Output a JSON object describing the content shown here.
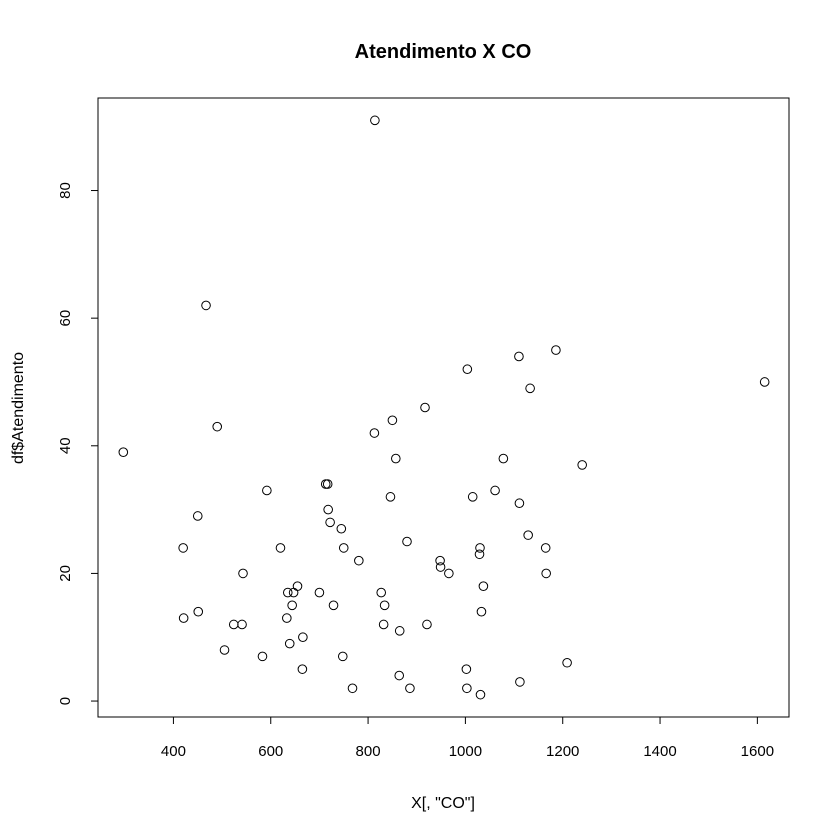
{
  "chart_data": {
    "type": "scatter",
    "title": "Atendimento X CO",
    "xlabel": "X[, \"CO\"]",
    "ylabel": "df$Atendimento",
    "xlim": [
      245,
      1665
    ],
    "ylim": [
      -2.5,
      94.5
    ],
    "xticks": [
      400,
      600,
      800,
      1000,
      1200,
      1400,
      1600
    ],
    "yticks": [
      0,
      20,
      40,
      60,
      80
    ],
    "xtick_labels": [
      "400",
      "600",
      "800",
      "1000",
      "1200",
      "1400",
      "1600"
    ],
    "ytick_labels": [
      "0",
      "20",
      "40",
      "60",
      "80"
    ],
    "grid": false,
    "marker": "open-circle",
    "points": [
      {
        "x": 297,
        "y": 39
      },
      {
        "x": 420,
        "y": 24
      },
      {
        "x": 421,
        "y": 13
      },
      {
        "x": 450,
        "y": 29
      },
      {
        "x": 451,
        "y": 14
      },
      {
        "x": 467,
        "y": 62
      },
      {
        "x": 490,
        "y": 43
      },
      {
        "x": 505,
        "y": 8
      },
      {
        "x": 524,
        "y": 12
      },
      {
        "x": 541,
        "y": 12
      },
      {
        "x": 543,
        "y": 20
      },
      {
        "x": 583,
        "y": 7
      },
      {
        "x": 592,
        "y": 33
      },
      {
        "x": 620,
        "y": 24
      },
      {
        "x": 633,
        "y": 13
      },
      {
        "x": 635,
        "y": 17
      },
      {
        "x": 639,
        "y": 9
      },
      {
        "x": 644,
        "y": 15
      },
      {
        "x": 647,
        "y": 17
      },
      {
        "x": 655,
        "y": 18
      },
      {
        "x": 665,
        "y": 5
      },
      {
        "x": 666,
        "y": 10
      },
      {
        "x": 700,
        "y": 17
      },
      {
        "x": 713,
        "y": 34
      },
      {
        "x": 717,
        "y": 34
      },
      {
        "x": 718,
        "y": 30
      },
      {
        "x": 722,
        "y": 28
      },
      {
        "x": 729,
        "y": 15
      },
      {
        "x": 745,
        "y": 27
      },
      {
        "x": 748,
        "y": 7
      },
      {
        "x": 750,
        "y": 24
      },
      {
        "x": 768,
        "y": 2
      },
      {
        "x": 781,
        "y": 22
      },
      {
        "x": 813,
        "y": 42
      },
      {
        "x": 814,
        "y": 91
      },
      {
        "x": 827,
        "y": 17
      },
      {
        "x": 832,
        "y": 12
      },
      {
        "x": 834,
        "y": 15
      },
      {
        "x": 846,
        "y": 32
      },
      {
        "x": 850,
        "y": 44
      },
      {
        "x": 857,
        "y": 38
      },
      {
        "x": 864,
        "y": 4
      },
      {
        "x": 865,
        "y": 11
      },
      {
        "x": 880,
        "y": 25
      },
      {
        "x": 886,
        "y": 2
      },
      {
        "x": 917,
        "y": 46
      },
      {
        "x": 921,
        "y": 12
      },
      {
        "x": 948,
        "y": 22
      },
      {
        "x": 949,
        "y": 21
      },
      {
        "x": 966,
        "y": 20
      },
      {
        "x": 1002,
        "y": 5
      },
      {
        "x": 1003,
        "y": 2
      },
      {
        "x": 1004,
        "y": 52
      },
      {
        "x": 1015,
        "y": 32
      },
      {
        "x": 1029,
        "y": 23
      },
      {
        "x": 1030,
        "y": 24
      },
      {
        "x": 1031,
        "y": 1
      },
      {
        "x": 1033,
        "y": 14
      },
      {
        "x": 1037,
        "y": 18
      },
      {
        "x": 1061,
        "y": 33
      },
      {
        "x": 1078,
        "y": 38
      },
      {
        "x": 1110,
        "y": 54
      },
      {
        "x": 1111,
        "y": 31
      },
      {
        "x": 1112,
        "y": 3
      },
      {
        "x": 1129,
        "y": 26
      },
      {
        "x": 1133,
        "y": 49
      },
      {
        "x": 1165,
        "y": 24
      },
      {
        "x": 1166,
        "y": 20
      },
      {
        "x": 1186,
        "y": 55
      },
      {
        "x": 1209,
        "y": 6
      },
      {
        "x": 1240,
        "y": 37
      },
      {
        "x": 1615,
        "y": 50
      }
    ]
  }
}
